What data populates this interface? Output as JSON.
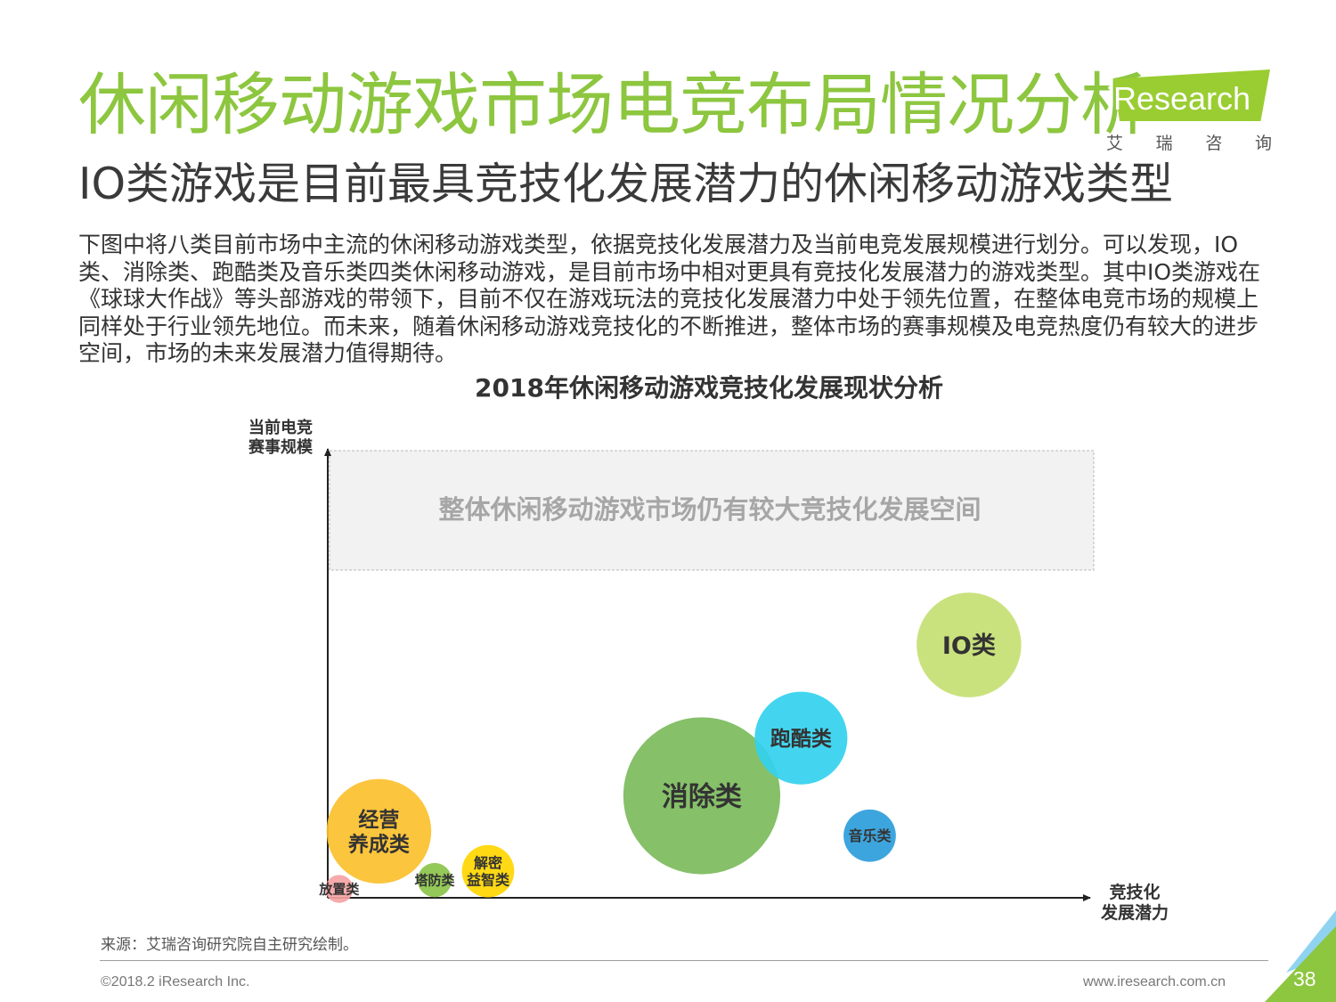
{
  "header": {
    "title": "休闲移动游戏市场电竞布局情况分析",
    "subtitle": "IO类游戏是目前最具竞技化发展潜力的休闲移动游戏类型"
  },
  "brand": {
    "logo_text": "iResearch",
    "logo_sub": [
      "艾",
      "瑞",
      "咨",
      "询"
    ],
    "accent_color": "#8dc63f"
  },
  "body_text": "下图中将八类目前市场中主流的休闲移动游戏类型，依据竞技化发展潜力及当前电竞发展规模进行划分。可以发现，IO类、消除类、跑酷类及音乐类四类休闲移动游戏，是目前市场中相对更具有竞技化发展潜力的游戏类型。其中IO类游戏在《球球大作战》等头部游戏的带领下，目前不仅在游戏玩法的竞技化发展潜力中处于领先位置，在整体电竞市场的规模上同样处于行业领先地位。而未来，随着休闲移动游戏竞技化的不断推进，整体市场的赛事规模及电竞热度仍有较大的进步空间，市场的未来发展潜力值得期待。",
  "chart_data": {
    "type": "scatter",
    "title": "2018年休闲移动游戏竞技化发展现状分析",
    "xlabel": [
      "竞技化",
      "发展潜力"
    ],
    "ylabel": [
      "当前电竞",
      "赛事规模"
    ],
    "xlim": [
      0,
      100
    ],
    "ylim": [
      0,
      100
    ],
    "grid": false,
    "legend": "none",
    "annotation": "整体休闲移动游戏市场仍有较大竞技化发展空间",
    "points": [
      {
        "label": [
          "放置类"
        ],
        "x": 1.5,
        "y": 2,
        "size": 2,
        "color": "#f5a3a3",
        "label_color": "#333333",
        "font_size": 15
      },
      {
        "label": [
          "经营",
          "养成类"
        ],
        "x": 6.7,
        "y": 15,
        "size": 28,
        "color": "#fbc02d",
        "label_color": "#333333",
        "font_size": 23
      },
      {
        "label": [
          "塔防类"
        ],
        "x": 14,
        "y": 4,
        "size": 3,
        "color": "#8bc34a",
        "label_color": "#333333",
        "font_size": 15
      },
      {
        "label": [
          "解密",
          "益智类"
        ],
        "x": 21,
        "y": 6,
        "size": 7,
        "color": "#ffd600",
        "label_color": "#333333",
        "font_size": 16
      },
      {
        "label": [
          "消除类"
        ],
        "x": 49,
        "y": 23,
        "size": 63,
        "color": "#7cbb5c",
        "label_color": "#333333",
        "font_size": 30
      },
      {
        "label": [
          "跑酷类"
        ],
        "x": 62,
        "y": 36,
        "size": 22,
        "color": "#33d1ee",
        "label_color": "#333333",
        "font_size": 23
      },
      {
        "label": [
          "音乐类"
        ],
        "x": 71,
        "y": 14,
        "size": 7,
        "color": "#2d9ddb",
        "label_color": "#333333",
        "font_size": 16
      },
      {
        "label": [
          "IO类"
        ],
        "x": 84,
        "y": 57,
        "size": 28,
        "color": "#c6df73",
        "label_color": "#333333",
        "font_size": 27
      }
    ]
  },
  "footer": {
    "source": "来源：艾瑞咨询研究院自主研究绘制。",
    "copyright": "©2018.2 iResearch Inc.",
    "website": "www.iresearch.com.cn",
    "page_number": "38"
  }
}
